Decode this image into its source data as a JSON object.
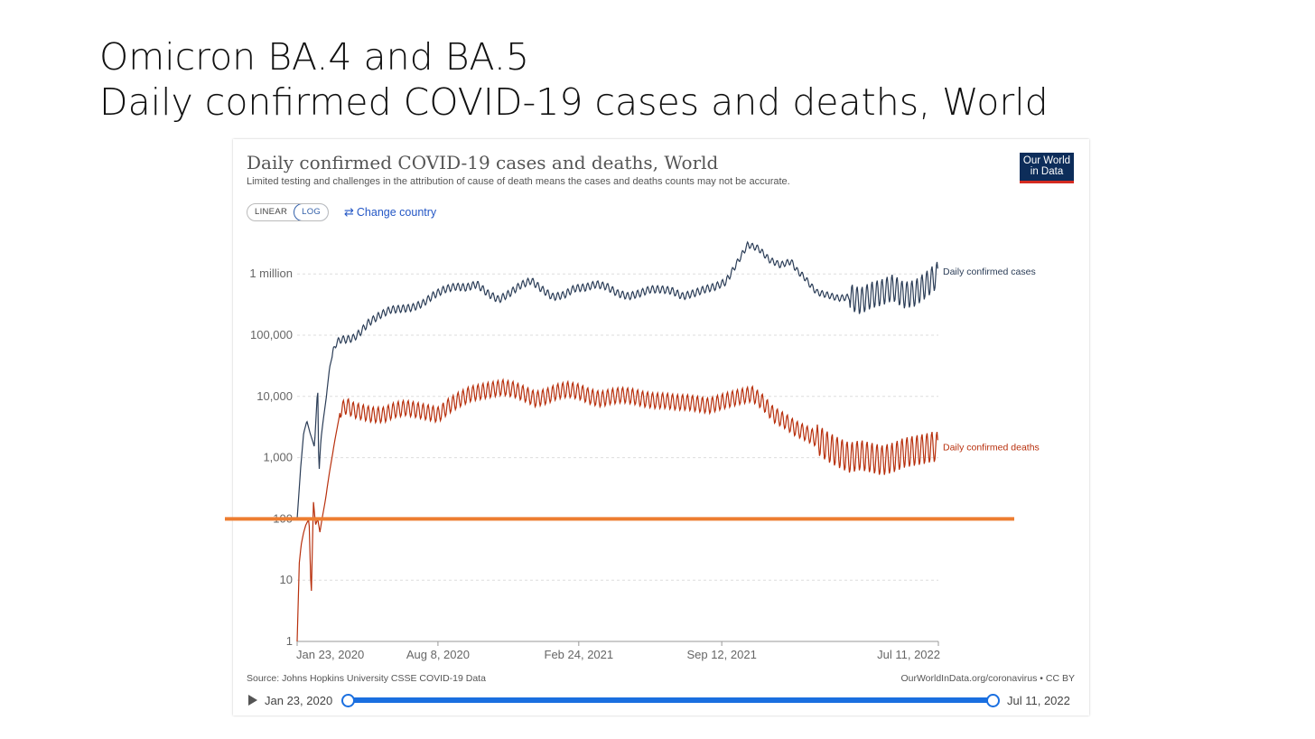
{
  "slide": {
    "title_line1": "Omicron BA.4 and BA.5",
    "title_line2": "Daily confirmed COVID-19 cases and deaths, World"
  },
  "card": {
    "logo_line1": "Our World",
    "logo_line2": "in Data",
    "scale_linear": "LINEAR",
    "scale_log": "LOG",
    "change_country": "Change country",
    "source": "Source: Johns Hopkins University CSSE COVID-19 Data",
    "license": "OurWorldInData.org/coronavirus • CC BY",
    "timeline_start": "Jan 23, 2020",
    "timeline_end": "Jul 11, 2022"
  },
  "colors": {
    "cases": "#2b3d57",
    "deaths": "#b8300d",
    "reference_line": "#ed7d31",
    "accent": "#1a6fe0"
  },
  "chart_data": {
    "type": "line",
    "title": "Daily confirmed COVID-19 cases and deaths, World",
    "subtitle": "Limited testing and challenges in the attribution of cause of death means the cases and deaths counts may not be accurate.",
    "y_scale": "log",
    "ylim": [
      1,
      3000000
    ],
    "y_ticks": [
      {
        "value": 1,
        "label": "1"
      },
      {
        "value": 10,
        "label": "10"
      },
      {
        "value": 100,
        "label": "100"
      },
      {
        "value": 1000,
        "label": "1,000"
      },
      {
        "value": 10000,
        "label": "10,000"
      },
      {
        "value": 100000,
        "label": "100,000"
      },
      {
        "value": 1000000,
        "label": "1 million"
      }
    ],
    "x_ticks": [
      "Jan 23, 2020",
      "Aug 8, 2020",
      "Feb 24, 2021",
      "Sep 12, 2021",
      "Jul 11, 2022"
    ],
    "x_tick_months": [
      0,
      6.5,
      13,
      19.6,
      29.6
    ],
    "x_range_months": [
      0,
      29.6
    ],
    "reference_line": {
      "value": 100,
      "label": "100"
    },
    "series": [
      {
        "name": "Daily confirmed cases",
        "months": [
          0,
          0.15,
          0.3,
          0.45,
          0.6,
          0.8,
          0.95,
          1.0,
          1.1,
          1.2,
          1.35,
          1.5,
          1.75,
          2.0,
          2.3,
          2.6,
          2.9,
          3.3,
          3.8,
          4.3,
          4.8,
          5.3,
          5.8,
          6.3,
          6.8,
          7.3,
          7.8,
          8.3,
          8.8,
          9.3,
          9.8,
          10.3,
          10.8,
          11.3,
          11.8,
          12.3,
          12.8,
          13.3,
          13.8,
          14.3,
          14.8,
          15.3,
          15.8,
          16.3,
          16.8,
          17.3,
          17.8,
          18.3,
          18.8,
          19.3,
          19.8,
          20.3,
          20.8,
          21.3,
          21.8,
          22.3,
          22.8,
          23.1,
          23.4,
          23.7,
          24.0,
          24.5,
          25.0,
          25.5,
          26.0,
          26.5,
          27.0,
          27.5,
          28.0,
          28.5,
          29.0,
          29.3,
          29.6
        ],
        "values": [
          100,
          600,
          2500,
          4000,
          2500,
          1500,
          15000,
          500,
          2000,
          4000,
          10000,
          30000,
          70000,
          85000,
          85000,
          90000,
          110000,
          160000,
          210000,
          260000,
          270000,
          280000,
          330000,
          450000,
          560000,
          620000,
          600000,
          680000,
          480000,
          380000,
          480000,
          650000,
          780000,
          560000,
          420000,
          450000,
          580000,
          600000,
          680000,
          620000,
          480000,
          430000,
          480000,
          560000,
          560000,
          530000,
          430000,
          480000,
          560000,
          620000,
          750000,
          1500000,
          3000000,
          2600000,
          1700000,
          1400000,
          1600000,
          1100000,
          900000,
          650000,
          500000,
          450000,
          400000,
          420000,
          360000,
          450000,
          500000,
          600000,
          450000,
          480000,
          650000,
          800000,
          1000000
        ],
        "weekly_oscillation": true
      },
      {
        "name": "Daily confirmed deaths",
        "months": [
          0,
          0.1,
          0.2,
          0.3,
          0.4,
          0.55,
          0.65,
          0.75,
          0.85,
          0.95,
          1.05,
          1.15,
          1.3,
          1.5,
          1.75,
          2.0,
          2.3,
          2.6,
          3.0,
          3.5,
          4.0,
          4.5,
          5.0,
          5.5,
          6.0,
          6.5,
          7.0,
          7.5,
          8.0,
          8.5,
          9.0,
          9.5,
          10.0,
          10.5,
          11.0,
          11.5,
          12.0,
          12.5,
          13.0,
          13.5,
          14.0,
          14.5,
          15.0,
          15.5,
          16.0,
          16.5,
          17.0,
          17.5,
          18.0,
          18.5,
          19.0,
          19.5,
          20.0,
          20.5,
          21.0,
          21.5,
          22.0,
          22.5,
          23.0,
          23.5,
          24.0,
          24.5,
          25.0,
          25.5,
          26.0,
          26.5,
          27.0,
          27.5,
          28.0,
          28.5,
          29.0,
          29.3,
          29.6
        ],
        "values": [
          1,
          20,
          40,
          60,
          80,
          100,
          5,
          200,
          80,
          100,
          60,
          100,
          200,
          600,
          2000,
          6000,
          7000,
          6000,
          5500,
          5000,
          5000,
          6000,
          6500,
          6000,
          5500,
          5000,
          7000,
          9000,
          11000,
          12000,
          13000,
          14000,
          13000,
          11000,
          9000,
          10000,
          12000,
          13000,
          12000,
          10000,
          9000,
          10000,
          10500,
          10000,
          9000,
          8500,
          8500,
          8000,
          8000,
          7500,
          7000,
          8000,
          9000,
          10000,
          11000,
          8000,
          5000,
          4000,
          3000,
          2500,
          2000,
          1500,
          1200,
          1000,
          1100,
          1000,
          900,
          1000,
          1200,
          1300,
          1400,
          1500,
          1500
        ],
        "weekly_oscillation": true
      }
    ]
  }
}
